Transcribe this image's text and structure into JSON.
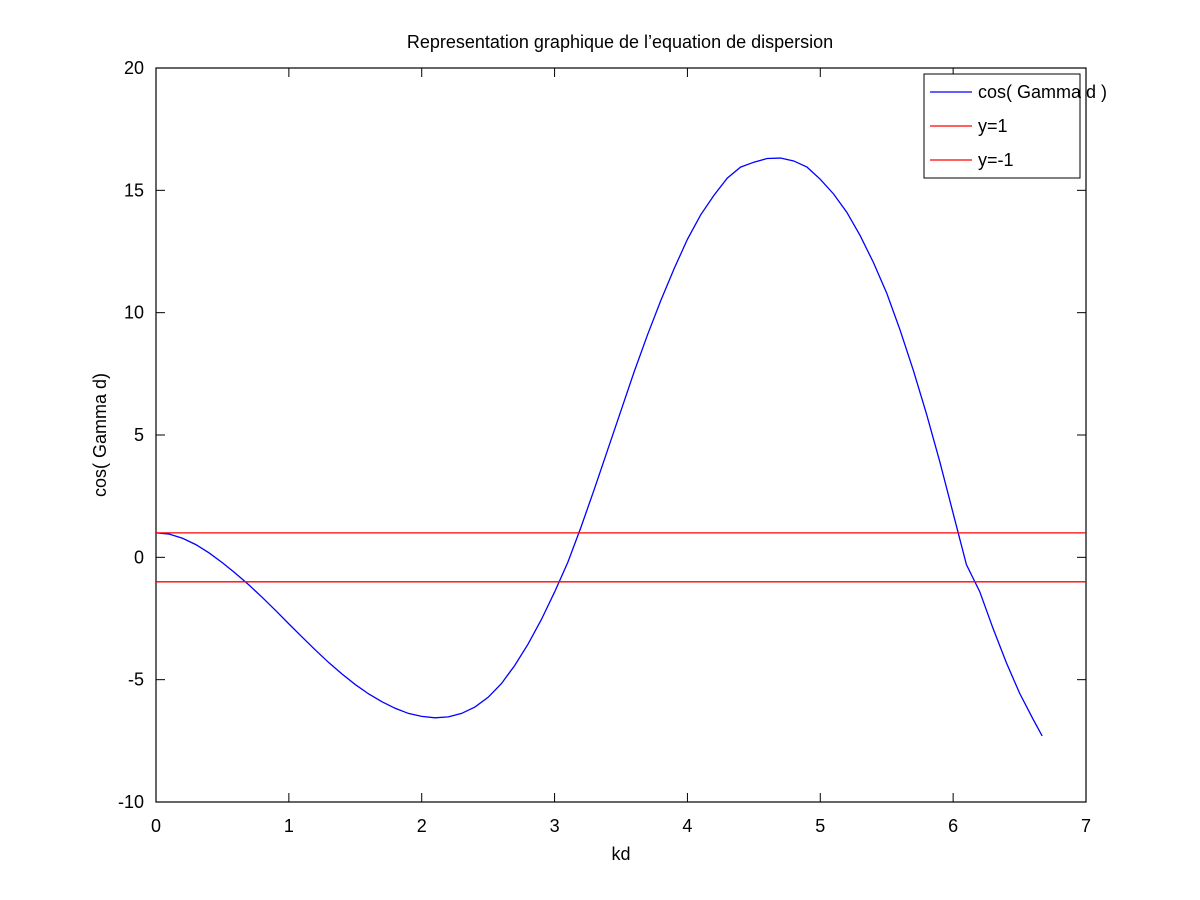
{
  "chart_data": {
    "type": "line",
    "title": "Representation graphique de l’equation de dispersion",
    "xlabel": "kd",
    "ylabel": "cos( Gamma d)",
    "xlim": [
      0,
      7
    ],
    "ylim": [
      -10,
      20
    ],
    "xticks": [
      0,
      1,
      2,
      3,
      4,
      5,
      6,
      7
    ],
    "yticks": [
      -10,
      -5,
      0,
      5,
      10,
      15,
      20
    ],
    "grid": false,
    "legend_position": "top-right",
    "series": [
      {
        "name": "cos( Gamma d )",
        "color": "#0000ff",
        "x": [
          0,
          0.1,
          0.2,
          0.3,
          0.4,
          0.5,
          0.6,
          0.7,
          0.8,
          0.9,
          1.0,
          1.1,
          1.2,
          1.3,
          1.4,
          1.5,
          1.6,
          1.7,
          1.8,
          1.9,
          2.0,
          2.1,
          2.2,
          2.3,
          2.4,
          2.5,
          2.6,
          2.7,
          2.8,
          2.9,
          3.0,
          3.1,
          3.2,
          3.3,
          3.4,
          3.5,
          3.6,
          3.7,
          3.8,
          3.9,
          4.0,
          4.1,
          4.2,
          4.3,
          4.4,
          4.5,
          4.6,
          4.7,
          4.8,
          4.9,
          5.0,
          5.1,
          5.2,
          5.3,
          5.4,
          5.5,
          5.6,
          5.7,
          5.8,
          5.9,
          6.0,
          6.1,
          6.2,
          6.3,
          6.4,
          6.5,
          6.6,
          6.67
        ],
        "y": [
          1.0,
          0.95,
          0.78,
          0.52,
          0.18,
          -0.22,
          -0.66,
          -1.13,
          -1.64,
          -2.17,
          -2.72,
          -3.26,
          -3.79,
          -4.3,
          -4.77,
          -5.2,
          -5.58,
          -5.9,
          -6.17,
          -6.38,
          -6.5,
          -6.56,
          -6.52,
          -6.38,
          -6.12,
          -5.72,
          -5.16,
          -4.42,
          -3.55,
          -2.55,
          -1.42,
          -0.2,
          1.25,
          2.8,
          4.4,
          6.0,
          7.6,
          9.1,
          10.5,
          11.8,
          13.0,
          14.0,
          14.8,
          15.5,
          15.95,
          16.15,
          16.3,
          16.32,
          16.2,
          15.95,
          15.45,
          14.85,
          14.1,
          13.15,
          12.05,
          10.8,
          9.3,
          7.65,
          5.85,
          3.9,
          1.8,
          -0.3,
          -1.4,
          -2.9,
          -4.3,
          -5.55,
          -6.6,
          -7.3
        ]
      },
      {
        "name": "y=1",
        "color": "#ff0000",
        "x": [
          0,
          7
        ],
        "y": [
          1,
          1
        ]
      },
      {
        "name": "y=-1",
        "color": "#ff0000",
        "x": [
          0,
          7
        ],
        "y": [
          -1,
          -1
        ]
      }
    ]
  }
}
